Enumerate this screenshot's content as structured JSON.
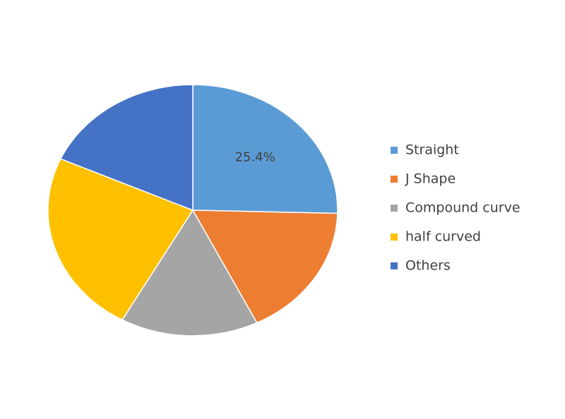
{
  "chart_data": {
    "type": "pie",
    "categories": [
      "Straight",
      "J Shape",
      "Compound curve",
      "half curved",
      "Others"
    ],
    "values": [
      25.4,
      17.3,
      15.4,
      23.6,
      18.3
    ],
    "value_labels": [
      "25.4%",
      null,
      null,
      null,
      null
    ],
    "colors": [
      "#5b9bd5",
      "#ed7d31",
      "#a5a5a5",
      "#ffc000",
      "#4472c4"
    ],
    "legend": "right"
  }
}
